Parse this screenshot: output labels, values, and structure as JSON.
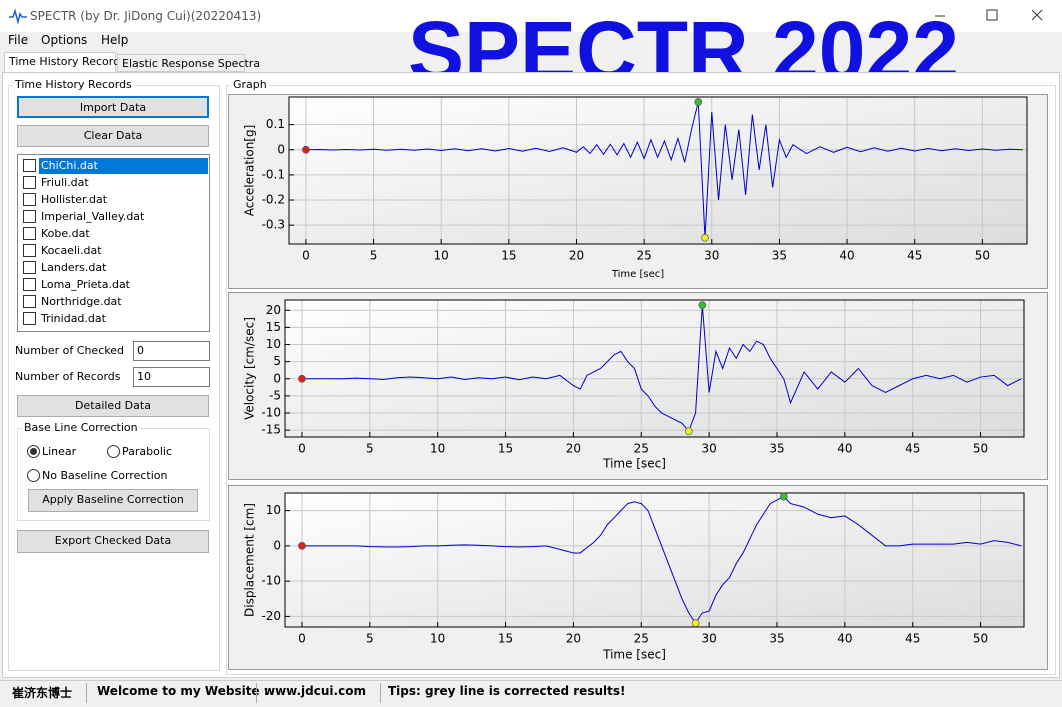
{
  "window_title": "SPECTR (by Dr. JiDong Cui)(20220413)",
  "overlay_title": "SPECTR 2022",
  "menu": [
    "File",
    "Options",
    "Help"
  ],
  "tabs": [
    "Time History Records",
    "Elastic Response Spectra"
  ],
  "left_panel": {
    "group_title": "Time History Records",
    "import_button": "Import Data",
    "clear_button": "Clear Data",
    "files": [
      "ChiChi.dat",
      "Friuli.dat",
      "Hollister.dat",
      "Imperial_Valley.dat",
      "Kobe.dat",
      "Kocaeli.dat",
      "Landers.dat",
      "Loma_Prieta.dat",
      "Northridge.dat",
      "Trinidad.dat"
    ],
    "checked_label": "Number of Checked",
    "checked_value": "0",
    "records_label": "Number of Records",
    "records_value": "10",
    "detail_button": "Detailed Data",
    "baseline_group": "Base Line Correction",
    "baseline_options": [
      "Linear",
      "Parabolic",
      "No Baseline Correction"
    ],
    "apply_button": "Apply Baseline Correction",
    "export_button": "Export Checked Data"
  },
  "graph_group": "Graph",
  "status_bar": [
    "崔济东博士",
    "Welcome to my Website :",
    "www.jdcui.com",
    "Tips: grey line is corrected results!"
  ],
  "chart_data": [
    {
      "type": "line",
      "y_label": "Acceleration[g]",
      "x_label": "Time [sec]",
      "color": "#0000c8",
      "start_color": "#e02020",
      "max_color": "#30c030",
      "min_color": "#f0f020",
      "xlim": [
        -1.25,
        53.3
      ],
      "ylim": [
        -0.375,
        0.21
      ],
      "xticks": [
        0,
        5,
        10,
        15,
        20,
        25,
        30,
        35,
        40,
        45,
        50
      ],
      "yticks": [
        -0.3,
        -0.2,
        -0.1,
        0,
        0.1
      ],
      "x": [
        0,
        1,
        2,
        3,
        4,
        5,
        6,
        7,
        8,
        9,
        10,
        11,
        12,
        13,
        14,
        15,
        16,
        17,
        18,
        19,
        20,
        20.5,
        21,
        21.5,
        22,
        22.5,
        23,
        23.5,
        24,
        24.5,
        25,
        25.5,
        26,
        26.5,
        27,
        27.5,
        28,
        28.5,
        29,
        29.5,
        30,
        30.5,
        31,
        31.5,
        32,
        32.5,
        33,
        33.5,
        34,
        34.5,
        35,
        35.5,
        36,
        37,
        38,
        39,
        40,
        41,
        42,
        43,
        44,
        45,
        46,
        47,
        48,
        49,
        50,
        51,
        52,
        53
      ],
      "values": [
        0,
        0.001,
        -0.001,
        0.001,
        -0.001,
        0.002,
        -0.002,
        0.002,
        -0.002,
        0.003,
        -0.003,
        0.004,
        -0.004,
        0.004,
        -0.005,
        0.005,
        -0.006,
        0.006,
        -0.007,
        0.008,
        -0.01,
        0.012,
        -0.015,
        0.02,
        -0.018,
        0.022,
        -0.02,
        0.025,
        -0.03,
        0.03,
        -0.035,
        0.04,
        -0.03,
        0.035,
        -0.04,
        0.045,
        -0.05,
        0.08,
        0.19,
        -0.35,
        0.15,
        -0.2,
        0.1,
        -0.12,
        0.08,
        -0.18,
        0.14,
        -0.08,
        0.1,
        -0.15,
        0.04,
        -0.03,
        0.02,
        -0.015,
        0.012,
        -0.01,
        0.01,
        -0.008,
        0.008,
        -0.006,
        0.006,
        -0.005,
        0.005,
        -0.004,
        0.004,
        -0.003,
        0.003,
        -0.002,
        0.002,
        0
      ]
    },
    {
      "type": "line",
      "y_label": "Velocity [cm/sec]",
      "x_label": "Time [sec]",
      "color": "#0000c8",
      "start_color": "#e02020",
      "max_color": "#30c030",
      "min_color": "#f0f020",
      "xlim": [
        -1.25,
        53.2
      ],
      "ylim": [
        -17,
        23
      ],
      "xticks": [
        0,
        5,
        10,
        15,
        20,
        25,
        30,
        35,
        40,
        45,
        50
      ],
      "yticks": [
        -15,
        -10,
        -5,
        0,
        5,
        10,
        15,
        20
      ],
      "x": [
        0,
        1,
        2,
        3,
        4,
        5,
        6,
        7,
        8,
        9,
        10,
        11,
        12,
        13,
        14,
        15,
        16,
        17,
        18,
        19,
        20,
        20.5,
        21,
        21.5,
        22,
        22.5,
        23,
        23.5,
        24,
        24.5,
        25,
        25.5,
        26,
        26.5,
        27,
        27.5,
        28,
        28.5,
        29,
        29.5,
        30,
        30.5,
        31,
        31.5,
        32,
        32.5,
        33,
        33.5,
        34,
        34.5,
        35,
        35.5,
        36,
        37,
        38,
        39,
        40,
        41,
        42,
        43,
        44,
        45,
        46,
        47,
        48,
        49,
        50,
        51,
        52,
        53
      ],
      "values": [
        0,
        0,
        0,
        0,
        0.2,
        0,
        -0.2,
        0.3,
        0.5,
        0.3,
        0,
        0.5,
        -0.2,
        0.3,
        0,
        0.5,
        -0.3,
        0.5,
        0,
        1,
        -2,
        -3,
        1,
        2,
        3,
        5,
        7,
        8,
        5,
        3,
        -3,
        -5,
        -8,
        -10,
        -11,
        -12,
        -13,
        -15.3,
        -10,
        21.5,
        -4,
        8,
        3,
        9,
        6,
        10,
        8,
        11,
        10,
        6,
        3,
        0,
        -7,
        2,
        -3,
        2,
        -1,
        3,
        -2,
        -4,
        -2,
        0,
        1,
        0,
        1,
        -1,
        0.5,
        1,
        -2,
        0
      ]
    },
    {
      "type": "line",
      "y_label": "Displacement [cm]",
      "x_label": "Time [sec]",
      "color": "#0000c8",
      "start_color": "#e02020",
      "max_color": "#30c030",
      "min_color": "#f0f020",
      "xlim": [
        -1.25,
        53.2
      ],
      "ylim": [
        -23,
        15
      ],
      "xticks": [
        0,
        5,
        10,
        15,
        20,
        25,
        30,
        35,
        40,
        45,
        50
      ],
      "yticks": [
        -20,
        -10,
        0,
        10
      ],
      "x": [
        0,
        1,
        2,
        3,
        4,
        5,
        6,
        7,
        8,
        9,
        10,
        11,
        12,
        13,
        14,
        15,
        16,
        17,
        18,
        19,
        20,
        20.5,
        21,
        21.5,
        22,
        22.5,
        23,
        23.5,
        24,
        24.5,
        25,
        25.5,
        26,
        26.5,
        27,
        27.5,
        28,
        28.5,
        29,
        29.5,
        30,
        30.5,
        31,
        31.5,
        32,
        32.5,
        33,
        33.5,
        34,
        34.5,
        35,
        35.5,
        36,
        37,
        38,
        39,
        40,
        41,
        42,
        43,
        44,
        45,
        46,
        47,
        48,
        49,
        50,
        51,
        52,
        53
      ],
      "values": [
        0,
        0,
        0,
        0,
        0,
        -0.2,
        -0.3,
        -0.3,
        -0.2,
        0,
        0,
        0.2,
        0.3,
        0.2,
        0,
        -0.2,
        -0.3,
        -0.2,
        0,
        -1,
        -2,
        -2,
        -0.5,
        1,
        3,
        6,
        8,
        10,
        12,
        12.5,
        12,
        10,
        5,
        0,
        -5,
        -10,
        -15,
        -19,
        -21.9,
        -19,
        -18.5,
        -14,
        -11,
        -9,
        -5,
        -2,
        2,
        6,
        9,
        12,
        13,
        14,
        12,
        11,
        9,
        8,
        8.5,
        6,
        3,
        0,
        0,
        0.5,
        0.5,
        0.5,
        0.5,
        1,
        0.5,
        1.5,
        1,
        0
      ]
    }
  ]
}
